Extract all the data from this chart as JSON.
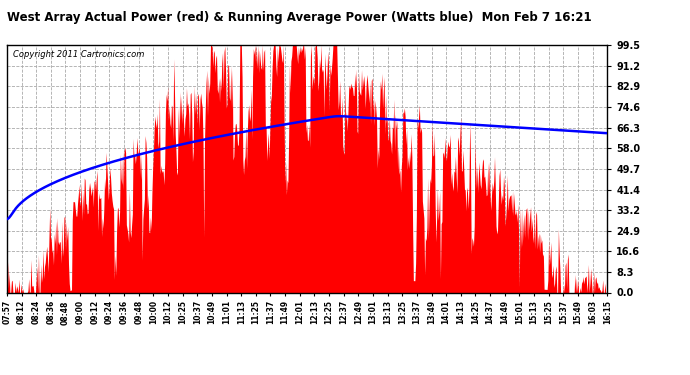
{
  "title": "West Array Actual Power (red) & Running Average Power (Watts blue)  Mon Feb 7 16:21",
  "copyright": "Copyright 2011 Cartronics.com",
  "yticks": [
    0.0,
    8.3,
    16.6,
    24.9,
    33.2,
    41.4,
    49.7,
    58.0,
    66.3,
    74.6,
    82.9,
    91.2,
    99.5
  ],
  "ylim": [
    0.0,
    99.5
  ],
  "bg_color": "#ffffff",
  "plot_bg": "#e8e8e8",
  "red_color": "#ff0000",
  "blue_color": "#0000ff",
  "grid_color": "#aaaaaa",
  "xtick_labels": [
    "07:57",
    "08:12",
    "08:24",
    "08:36",
    "08:48",
    "09:00",
    "09:12",
    "09:24",
    "09:36",
    "09:48",
    "10:00",
    "10:12",
    "10:25",
    "10:37",
    "10:49",
    "11:01",
    "11:13",
    "11:25",
    "11:37",
    "11:49",
    "12:01",
    "12:13",
    "12:25",
    "12:37",
    "12:49",
    "13:01",
    "13:13",
    "13:25",
    "13:37",
    "13:49",
    "14:01",
    "14:13",
    "14:25",
    "14:37",
    "14:49",
    "15:01",
    "15:13",
    "15:25",
    "15:37",
    "15:49",
    "16:03",
    "16:15"
  ]
}
